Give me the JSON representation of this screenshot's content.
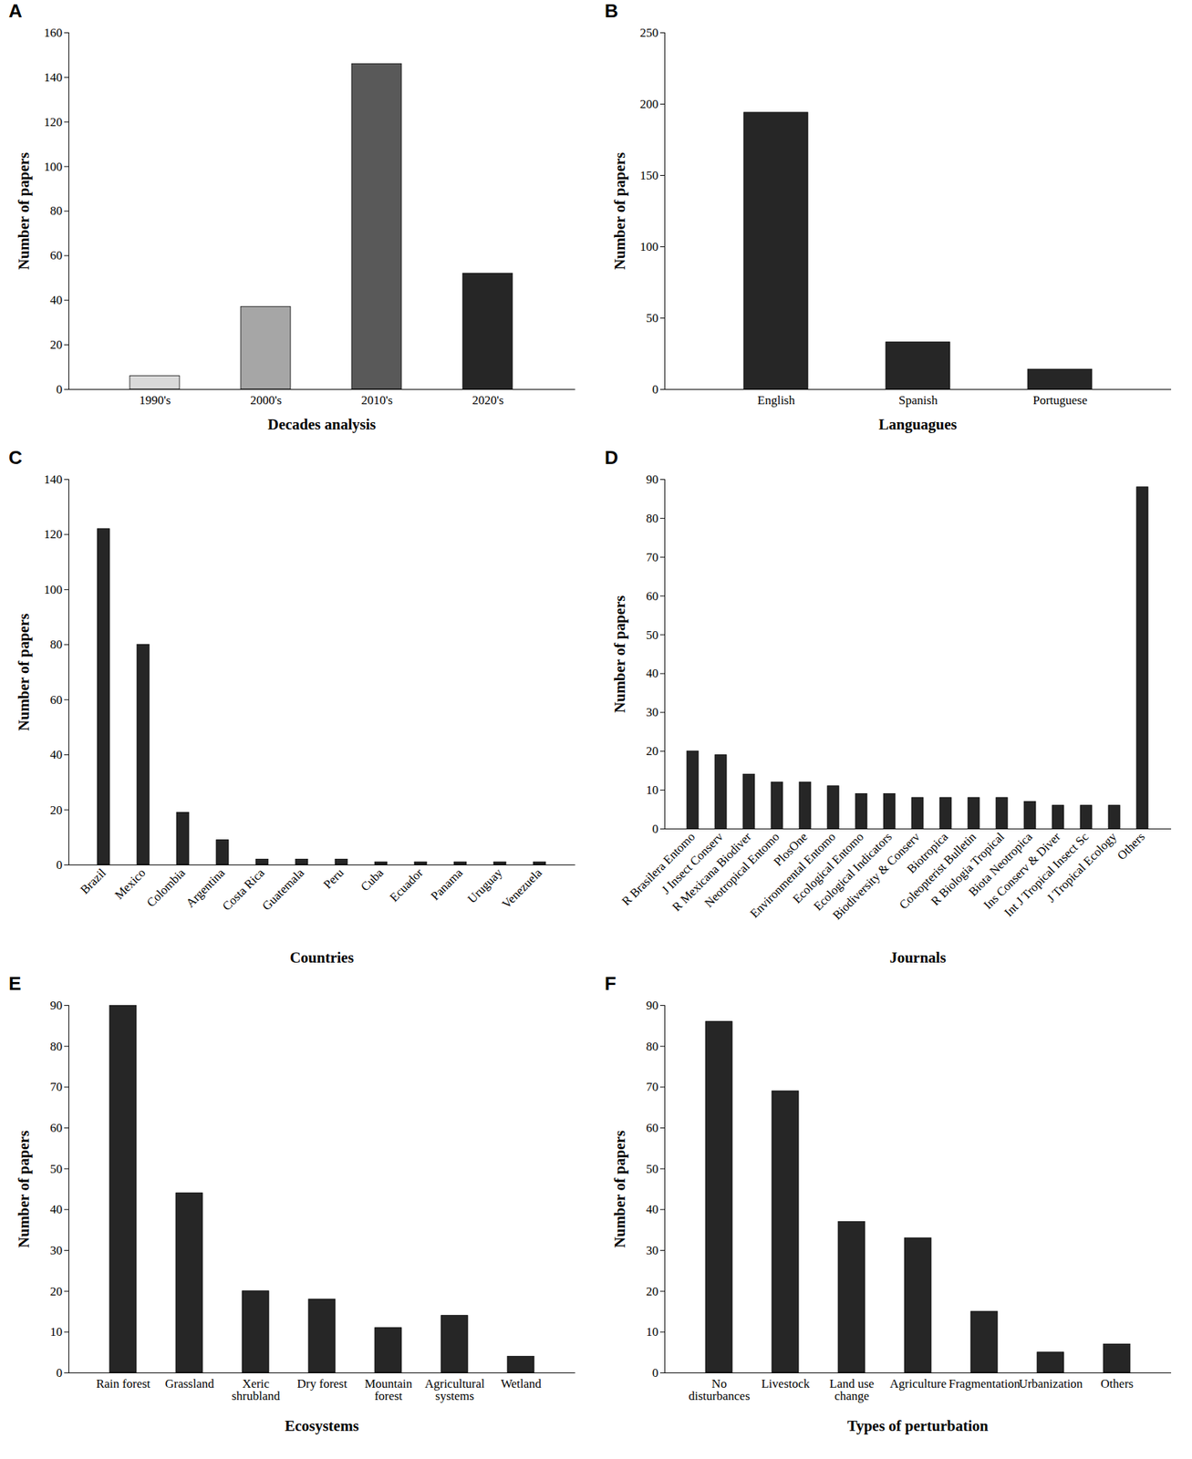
{
  "chart_data": [
    {
      "type": "bar",
      "title": "A",
      "x_label": "Decades analysis",
      "y_label": "Number of papers",
      "categories": [
        "1990's",
        "2000's",
        "2010's",
        "2020's"
      ],
      "values": [
        6,
        37,
        146,
        52
      ],
      "colors": [
        "#d9d9d9",
        "#a6a6a6",
        "#595959",
        "#262626"
      ],
      "ylim": [
        0,
        160
      ],
      "yticks": [
        0,
        20,
        40,
        60,
        80,
        100,
        120,
        140,
        160
      ]
    },
    {
      "type": "bar",
      "title": "B",
      "x_label": "Languagues",
      "y_label": "Number of papers",
      "categories": [
        "English",
        "Spanish",
        "Portuguese"
      ],
      "values": [
        194,
        33,
        14
      ],
      "color": "#262626",
      "ylim": [
        0,
        250
      ],
      "yticks": [
        0,
        50,
        100,
        150,
        200,
        250
      ]
    },
    {
      "type": "bar",
      "title": "C",
      "x_label": "Countries",
      "y_label": "Number of papers",
      "categories": [
        "Brazil",
        "Mexico",
        "Colombia",
        "Argentina",
        "Costa Rica",
        "Guatemala",
        "Peru",
        "Cuba",
        "Ecuador",
        "Panama",
        "Uruguay",
        "Venezuela"
      ],
      "values": [
        122,
        80,
        19,
        9,
        2,
        2,
        2,
        1,
        1,
        1,
        1,
        1
      ],
      "color": "#262626",
      "ylim": [
        0,
        140
      ],
      "yticks": [
        0,
        20,
        40,
        60,
        80,
        100,
        120,
        140
      ]
    },
    {
      "type": "bar",
      "title": "D",
      "x_label": "Journals",
      "y_label": "Number of papers",
      "categories": [
        "R Brasilera Entomo",
        "J Insect Conserv",
        "R Mexicana Biodiver",
        "Neotropical Entomo",
        "PlosOne",
        "Environmental Entomo",
        "Ecological Entomo",
        "Ecological Indicators",
        "Biodiversity & Conserv",
        "Biotropica",
        "Coleopterist Bulletin",
        "R Biologia Tropical",
        "Biota Neotropica",
        "Ins Conserv & Diver",
        "Int J Tropical Insect Sc",
        "J Tropical Ecology",
        "Others"
      ],
      "values": [
        20,
        19,
        14,
        12,
        12,
        11,
        9,
        9,
        8,
        8,
        8,
        8,
        7,
        6,
        6,
        6,
        88
      ],
      "color": "#262626",
      "ylim": [
        0,
        90
      ],
      "yticks": [
        0,
        10,
        20,
        30,
        40,
        50,
        60,
        70,
        80,
        90
      ]
    },
    {
      "type": "bar",
      "title": "E",
      "x_label": "Ecosystems",
      "y_label": "Number of papers",
      "categories": [
        "Rain forest",
        "Grassland",
        "Xeric shrubland",
        "Dry forest",
        "Mountain forest",
        "Agricultural systems",
        "Wetland"
      ],
      "values": [
        90,
        44,
        20,
        18,
        11,
        14,
        4
      ],
      "color": "#262626",
      "ylim": [
        0,
        90
      ],
      "yticks": [
        0,
        10,
        20,
        30,
        40,
        50,
        60,
        70,
        80,
        90
      ]
    },
    {
      "type": "bar",
      "title": "F",
      "x_label": "Types of perturbation",
      "y_label": "Number of papers",
      "categories": [
        "No disturbances",
        "Livestock",
        "Land use change",
        "Agriculture",
        "Fragmentation",
        "Urbanization",
        "Others"
      ],
      "values": [
        86,
        69,
        37,
        33,
        15,
        5,
        7
      ],
      "color": "#262626",
      "ylim": [
        0,
        90
      ],
      "yticks": [
        0,
        10,
        20,
        30,
        40,
        50,
        60,
        70,
        80,
        90
      ]
    }
  ]
}
